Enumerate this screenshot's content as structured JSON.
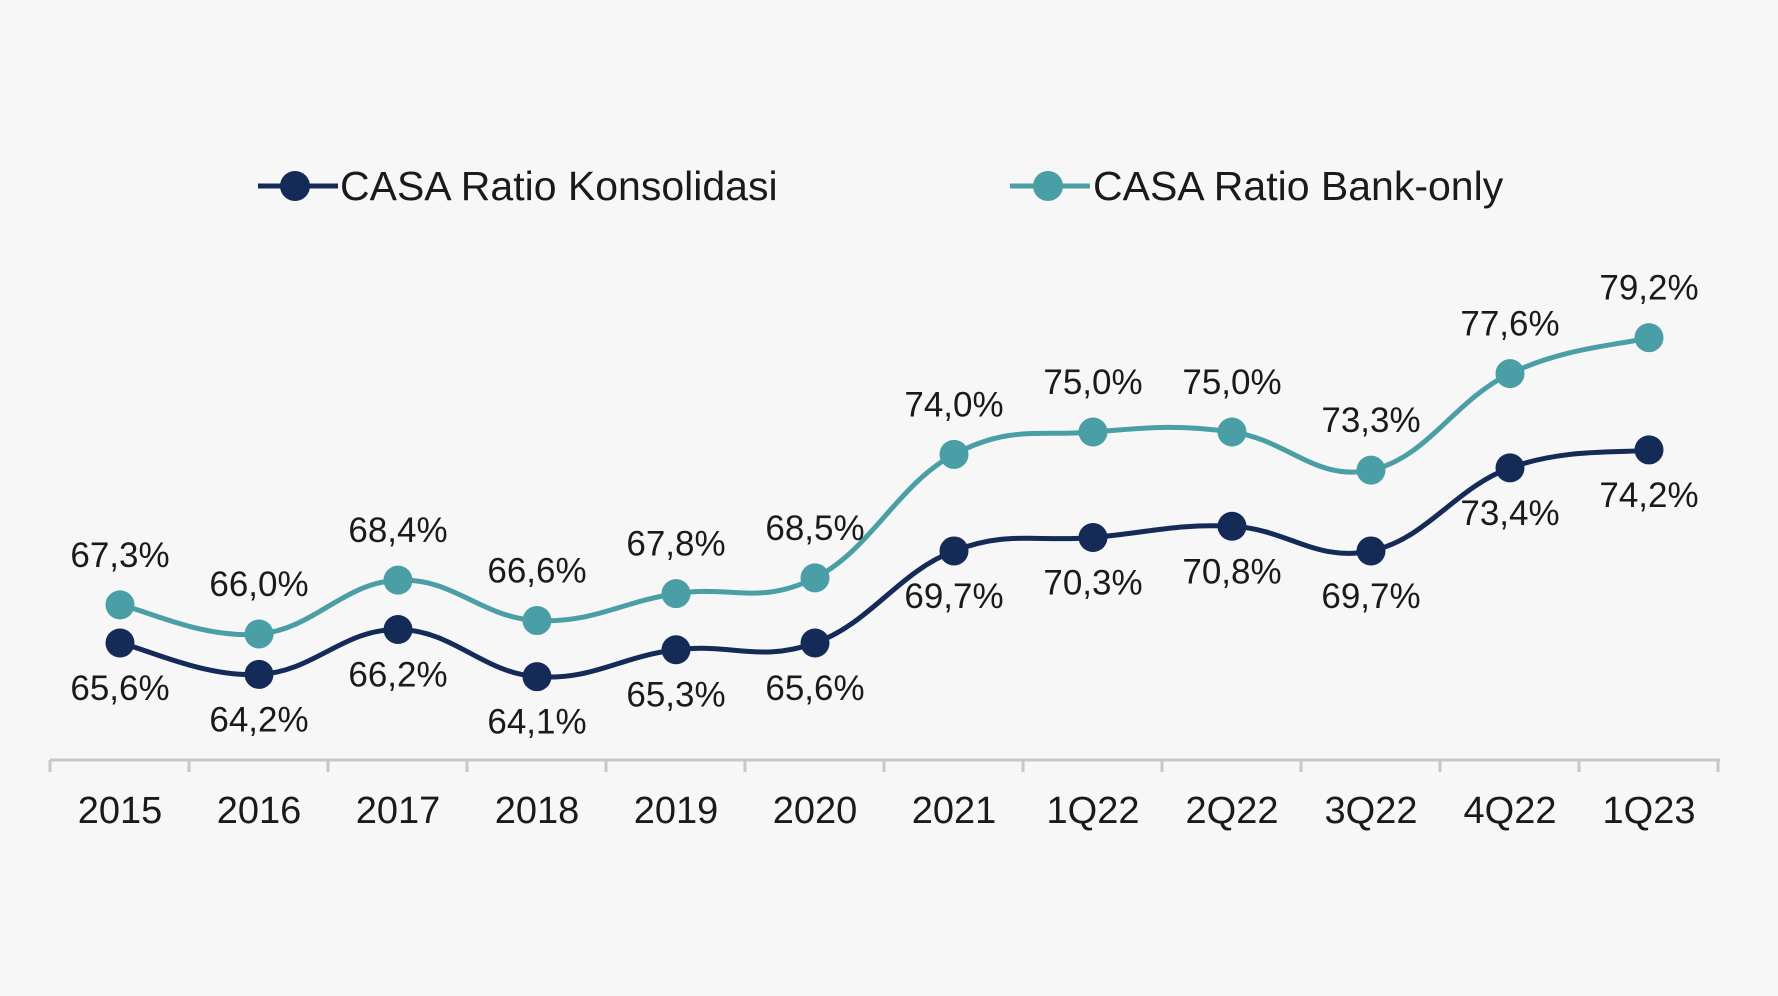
{
  "chart_data": {
    "type": "line",
    "categories": [
      "2015",
      "2016",
      "2017",
      "2018",
      "2019",
      "2020",
      "2021",
      "1Q22",
      "2Q22",
      "3Q22",
      "4Q22",
      "1Q23"
    ],
    "series": [
      {
        "name": "CASA Ratio Konsolidasi",
        "color": "#142a57",
        "values": [
          65.6,
          64.2,
          66.2,
          64.1,
          65.3,
          65.6,
          69.7,
          70.3,
          70.8,
          69.7,
          73.4,
          74.2
        ],
        "labels": [
          "65,6%",
          "64,2%",
          "66,2%",
          "64,1%",
          "65,3%",
          "65,6%",
          "69,7%",
          "70,3%",
          "70,8%",
          "69,7%",
          "73,4%",
          "74,2%"
        ],
        "label_position": "below"
      },
      {
        "name": "CASA Ratio Bank-only",
        "color": "#4a9ea6",
        "values": [
          67.3,
          66.0,
          68.4,
          66.6,
          67.8,
          68.5,
          74.0,
          75.0,
          75.0,
          73.3,
          77.6,
          79.2
        ],
        "labels": [
          "67,3%",
          "66,0%",
          "68,4%",
          "66,6%",
          "67,8%",
          "68,5%",
          "74,0%",
          "75,0%",
          "75,0%",
          "73,3%",
          "77,6%",
          "79,2%"
        ],
        "label_position": "above"
      }
    ],
    "legend_position": "top",
    "grid": false,
    "title": "",
    "xlabel": "",
    "ylabel": ""
  }
}
